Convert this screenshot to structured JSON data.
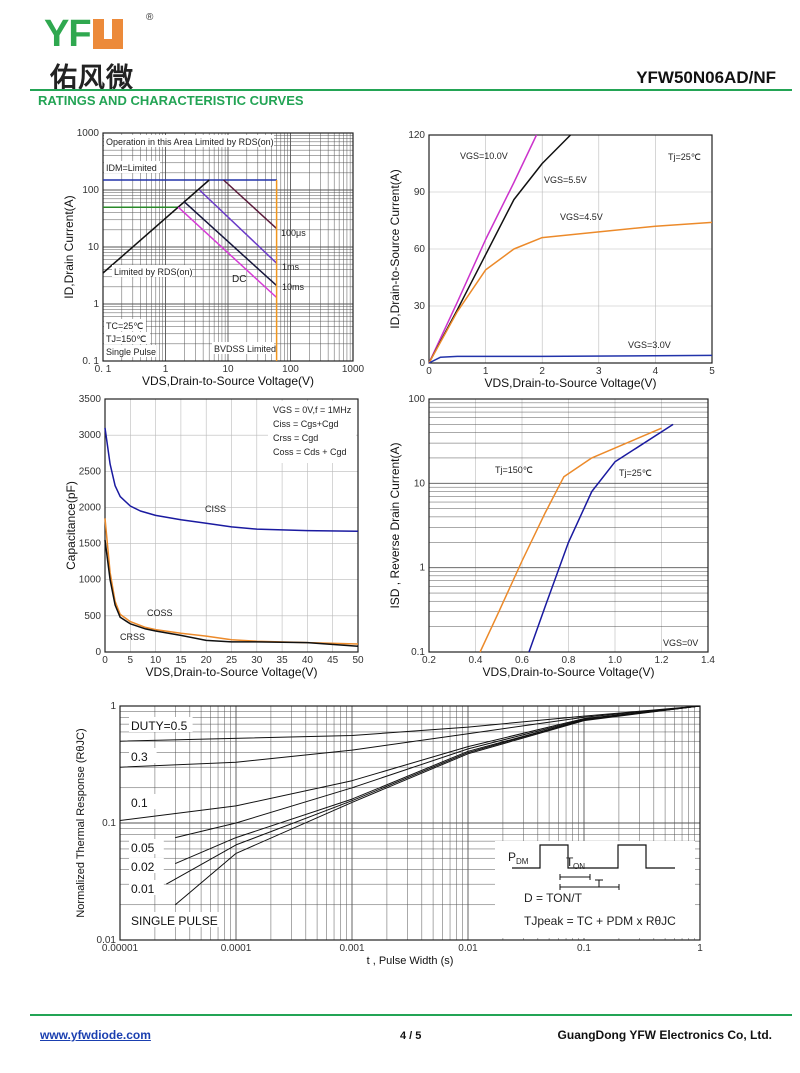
{
  "header": {
    "logo_text": "YF",
    "logo_reg": "®",
    "logo_cn": "佑风微",
    "part_number": "YFW50N06AD/NF",
    "section_title": "RATINGS AND CHARACTERISTIC CURVES",
    "colors": {
      "brand_green": "#23a455",
      "brand_orange": "#ec8a3a"
    }
  },
  "footer": {
    "website": "www.yfwdiode.com",
    "page": "4 / 5",
    "company": "GuangDong YFW Electronics Co, Ltd."
  },
  "chart_data": [
    {
      "id": "soa",
      "type": "line",
      "title": "",
      "xlabel": "VDS,Drain-to-Source Voltage(V)",
      "ylabel": "ID,Drain Current(A)",
      "xscale": "log",
      "yscale": "log",
      "xlim": [
        0.1,
        1000
      ],
      "ylim": [
        0.1,
        1000
      ],
      "xticks": [
        "0. 1",
        "1",
        "10",
        "100",
        "1000"
      ],
      "yticks": [
        "0. 1",
        "1",
        "10",
        "100",
        "1000"
      ],
      "grid": true,
      "annotations": [
        "Operation in this Area Limited by RDS(on)",
        "IDM=Limited",
        "Limited by RDS(on)",
        "DC",
        "100μs",
        "1ms",
        "10ms",
        "BVDSS Limited",
        "TC=25℃",
        "TJ=150℃",
        "Single Pulse"
      ],
      "series": [
        {
          "name": "IDM limit",
          "color": "#2233aa",
          "points": [
            [
              0.1,
              150
            ],
            [
              60,
              150
            ]
          ]
        },
        {
          "name": "ID limit",
          "color": "#2a8a2a",
          "points": [
            [
              0.1,
              50
            ],
            [
              1.6,
              50
            ]
          ]
        },
        {
          "name": "RDS(on) limit",
          "color": "#111111",
          "points": [
            [
              0.1,
              3.5
            ],
            [
              5,
              150
            ]
          ]
        },
        {
          "name": "100μs",
          "color": "#5a1a3a",
          "points": [
            [
              8.5,
              150
            ],
            [
              60,
              21
            ]
          ]
        },
        {
          "name": "1ms",
          "color": "#6a3ac8",
          "points": [
            [
              3.5,
              100
            ],
            [
              60,
              5.2
            ]
          ]
        },
        {
          "name": "10ms",
          "color": "#14143a",
          "points": [
            [
              2,
              62
            ],
            [
              60,
              2.1
            ]
          ]
        },
        {
          "name": "DC",
          "color": "#d63ad6",
          "points": [
            [
              1.6,
              50
            ],
            [
              60,
              1.3
            ]
          ]
        },
        {
          "name": "BVDSS",
          "color": "#f0961e",
          "points": [
            [
              60,
              0.1
            ],
            [
              60,
              150
            ]
          ]
        }
      ]
    },
    {
      "id": "output",
      "type": "line",
      "xlabel": "VDS,Drain-to-Source Voltage(V)",
      "ylabel": "ID,Drain-to-Source Current(A)",
      "xlim": [
        0,
        5
      ],
      "ylim": [
        0,
        120
      ],
      "xticks": [
        "0",
        "1",
        "2",
        "3",
        "4",
        "5"
      ],
      "yticks": [
        "0",
        "30",
        "60",
        "90",
        "120"
      ],
      "grid": true,
      "annotations": [
        "Tj=25℃"
      ],
      "series": [
        {
          "name": "VGS=10.0V",
          "color": "#cc33cc",
          "points": [
            [
              0,
              0
            ],
            [
              0.5,
              32
            ],
            [
              1,
              65
            ],
            [
              1.5,
              95
            ],
            [
              1.9,
              120
            ]
          ]
        },
        {
          "name": "VGS=5.5V",
          "color": "#111111",
          "points": [
            [
              0,
              0
            ],
            [
              0.5,
              28
            ],
            [
              1,
              57
            ],
            [
              1.5,
              86
            ],
            [
              2,
              105
            ],
            [
              2.5,
              120
            ]
          ]
        },
        {
          "name": "VGS=4.5V",
          "color": "#ec8a2a",
          "points": [
            [
              0,
              0
            ],
            [
              0.5,
              27
            ],
            [
              1,
              49
            ],
            [
              1.5,
              60
            ],
            [
              2,
              66
            ],
            [
              3,
              69
            ],
            [
              4,
              72
            ],
            [
              5,
              74
            ]
          ]
        },
        {
          "name": "VGS=3.0V",
          "color": "#2233aa",
          "points": [
            [
              0,
              0
            ],
            [
              0.2,
              3
            ],
            [
              0.5,
              3.5
            ],
            [
              2,
              3.5
            ],
            [
              5,
              4
            ]
          ]
        }
      ]
    },
    {
      "id": "capacitance",
      "type": "line",
      "xlabel": "VDS,Drain-to-Source Voltage(V)",
      "ylabel": "Capacitance(pF)",
      "xlim": [
        0,
        50
      ],
      "ylim": [
        0,
        3500
      ],
      "xticks": [
        "0",
        "5",
        "10",
        "15",
        "20",
        "25",
        "30",
        "35",
        "40",
        "45",
        "50"
      ],
      "yticks": [
        "0",
        "500",
        "1000",
        "1500",
        "2000",
        "2500",
        "3000",
        "3500"
      ],
      "grid": true,
      "annotations": [
        "VGS  = 0V,f = 1MHz",
        "Ciss = Cgs+Cgd",
        "Crss = Cgd",
        "Coss = Cds + Cgd"
      ],
      "series": [
        {
          "name": "CISS",
          "color": "#1a1aa0",
          "points": [
            [
              0,
              3100
            ],
            [
              1,
              2600
            ],
            [
              2,
              2300
            ],
            [
              3,
              2150
            ],
            [
              5,
              2020
            ],
            [
              7,
              1950
            ],
            [
              10,
              1890
            ],
            [
              15,
              1830
            ],
            [
              20,
              1780
            ],
            [
              25,
              1730
            ],
            [
              30,
              1700
            ],
            [
              40,
              1680
            ],
            [
              50,
              1670
            ]
          ]
        },
        {
          "name": "COSS",
          "color": "#ec8a2a",
          "points": [
            [
              0,
              1850
            ],
            [
              1,
              1100
            ],
            [
              2,
              700
            ],
            [
              3,
              520
            ],
            [
              5,
              420
            ],
            [
              8,
              340
            ],
            [
              10,
              310
            ],
            [
              15,
              260
            ],
            [
              20,
              220
            ],
            [
              25,
              170
            ],
            [
              30,
              150
            ],
            [
              40,
              130
            ],
            [
              50,
              110
            ]
          ]
        },
        {
          "name": "CRSS",
          "color": "#111111",
          "points": [
            [
              0,
              1550
            ],
            [
              1,
              1000
            ],
            [
              2,
              650
            ],
            [
              3,
              480
            ],
            [
              5,
              390
            ],
            [
              8,
              320
            ],
            [
              10,
              290
            ],
            [
              15,
              230
            ],
            [
              20,
              160
            ],
            [
              25,
              140
            ],
            [
              30,
              140
            ],
            [
              40,
              130
            ],
            [
              50,
              80
            ]
          ]
        }
      ]
    },
    {
      "id": "body-diode",
      "type": "line",
      "xlabel": "VDS,Drain-to-Source Voltage(V)",
      "ylabel": "ISD , Reverse Drain Current(A)",
      "yscale": "log",
      "xlim": [
        0.2,
        1.4
      ],
      "ylim": [
        0.1,
        100
      ],
      "xticks": [
        "0.2",
        "0.4",
        "0.6",
        "0.8",
        "1.0",
        "1.2",
        "1.4"
      ],
      "yticks": [
        "0.1",
        "1",
        "10",
        "100"
      ],
      "grid": true,
      "annotations": [
        "VGS=0V"
      ],
      "series": [
        {
          "name": "Tj=150℃",
          "color": "#ec8a2a",
          "points": [
            [
              0.42,
              0.1
            ],
            [
              0.5,
              0.3
            ],
            [
              0.6,
              1.2
            ],
            [
              0.7,
              4.5
            ],
            [
              0.78,
              12
            ],
            [
              0.9,
              20
            ],
            [
              1.2,
              45
            ]
          ]
        },
        {
          "name": "Tj=25℃",
          "color": "#1a1aa0",
          "points": [
            [
              0.63,
              0.1
            ],
            [
              0.7,
              0.35
            ],
            [
              0.8,
              2
            ],
            [
              0.9,
              8
            ],
            [
              1.0,
              18
            ],
            [
              1.25,
              50
            ]
          ]
        }
      ]
    },
    {
      "id": "thermal",
      "type": "line",
      "xlabel": "t , Pulse Width (s)",
      "ylabel": "Normalized Thermal Response (RθJC)",
      "xscale": "log",
      "yscale": "log",
      "xlim": [
        1e-05,
        1
      ],
      "ylim": [
        0.01,
        1
      ],
      "xticks": [
        "0.00001",
        "0.0001",
        "0.001",
        "0.01",
        "0.1",
        "1"
      ],
      "yticks": [
        "0.01",
        "0.1",
        "1"
      ],
      "grid": true,
      "annotations": [
        "PDM",
        "TON",
        "T",
        "D = TON/T",
        "TJpeak = TC + PDM x RθJC"
      ],
      "series": [
        {
          "name": "DUTY=0.5",
          "color": "#111111",
          "points": [
            [
              1e-05,
              0.5
            ],
            [
              0.001,
              0.56
            ],
            [
              0.01,
              0.66
            ],
            [
              0.1,
              0.82
            ],
            [
              1,
              1
            ]
          ]
        },
        {
          "name": "0.3",
          "color": "#111111",
          "points": [
            [
              1e-05,
              0.3
            ],
            [
              0.0001,
              0.33
            ],
            [
              0.001,
              0.42
            ],
            [
              0.01,
              0.58
            ],
            [
              0.1,
              0.8
            ],
            [
              1,
              1
            ]
          ]
        },
        {
          "name": "0.1",
          "color": "#111111",
          "points": [
            [
              1e-05,
              0.105
            ],
            [
              0.0001,
              0.14
            ],
            [
              0.001,
              0.23
            ],
            [
              0.01,
              0.45
            ],
            [
              0.1,
              0.78
            ],
            [
              1,
              1
            ]
          ]
        },
        {
          "name": "0.05",
          "color": "#111111",
          "points": [
            [
              3e-05,
              0.075
            ],
            [
              0.0001,
              0.1
            ],
            [
              0.001,
              0.2
            ],
            [
              0.01,
              0.43
            ],
            [
              0.1,
              0.77
            ],
            [
              1,
              1
            ]
          ]
        },
        {
          "name": "0.02",
          "color": "#111111",
          "points": [
            [
              3e-05,
              0.045
            ],
            [
              0.0001,
              0.075
            ],
            [
              0.001,
              0.16
            ],
            [
              0.01,
              0.41
            ],
            [
              0.1,
              0.76
            ],
            [
              1,
              1
            ]
          ]
        },
        {
          "name": "0.01",
          "color": "#111111",
          "points": [
            [
              2.5e-05,
              0.03
            ],
            [
              0.0001,
              0.065
            ],
            [
              0.001,
              0.155
            ],
            [
              0.01,
              0.4
            ],
            [
              0.1,
              0.76
            ],
            [
              1,
              1
            ]
          ]
        },
        {
          "name": "SINGLE PULSE",
          "color": "#111111",
          "points": [
            [
              3e-05,
              0.02
            ],
            [
              0.0001,
              0.055
            ],
            [
              0.001,
              0.15
            ],
            [
              0.01,
              0.39
            ],
            [
              0.1,
              0.75
            ],
            [
              1,
              1
            ]
          ]
        }
      ]
    }
  ]
}
